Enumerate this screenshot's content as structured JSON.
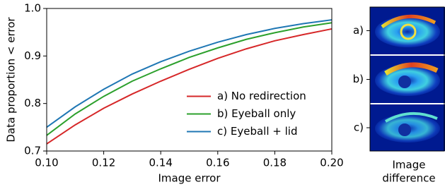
{
  "chart_data": {
    "type": "line",
    "xlabel": "Image error",
    "ylabel": "Data proportion < error",
    "x": [
      0.1,
      0.11,
      0.12,
      0.13,
      0.14,
      0.15,
      0.16,
      0.17,
      0.18,
      0.19,
      0.2
    ],
    "series": [
      {
        "name": "a) No redirection",
        "color": "#d62728",
        "values": [
          0.715,
          0.755,
          0.79,
          0.82,
          0.847,
          0.872,
          0.895,
          0.915,
          0.932,
          0.945,
          0.957
        ]
      },
      {
        "name": "b) Eyeball only",
        "color": "#2ca02c",
        "values": [
          0.733,
          0.778,
          0.815,
          0.847,
          0.873,
          0.897,
          0.917,
          0.935,
          0.949,
          0.961,
          0.97
        ]
      },
      {
        "name": "c) Eyeball + lid",
        "color": "#1f77b4",
        "values": [
          0.75,
          0.793,
          0.83,
          0.862,
          0.888,
          0.91,
          0.929,
          0.945,
          0.958,
          0.968,
          0.976
        ]
      }
    ],
    "xlim": [
      0.1,
      0.2
    ],
    "xticks": [
      {
        "value": 0.1,
        "label": "0.10"
      },
      0.12,
      0.14,
      0.16,
      0.18,
      {
        "value": 0.2,
        "label": "0.20"
      }
    ],
    "ylim": [
      0.7,
      1
    ],
    "yticks": [
      0.7,
      0.8,
      0.9,
      {
        "value": 1,
        "label": "1.0"
      }
    ],
    "legend": "lower right"
  },
  "side_panel": {
    "labels": [
      "a)",
      "b)",
      "c)"
    ],
    "caption": [
      "Image",
      "difference"
    ]
  }
}
